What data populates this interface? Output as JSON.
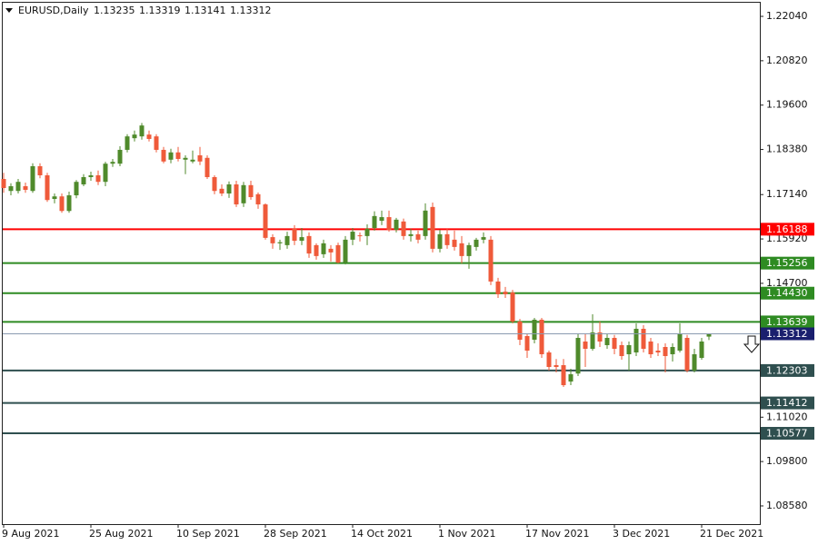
{
  "chart_data": {
    "type": "candlestick",
    "title": "EURUSD,Daily",
    "categories": [
      "9 Aug 2021",
      null,
      null,
      null,
      null,
      null,
      null,
      null,
      null,
      null,
      null,
      null,
      "25 Aug 2021",
      null,
      null,
      null,
      null,
      null,
      null,
      null,
      null,
      null,
      null,
      null,
      "10 Sep 2021",
      null,
      null,
      null,
      null,
      null,
      null,
      null,
      null,
      null,
      null,
      null,
      "28 Sep 2021",
      null,
      null,
      null,
      null,
      null,
      null,
      null,
      null,
      null,
      null,
      null,
      "14 Oct 2021",
      null,
      null,
      null,
      null,
      null,
      null,
      null,
      null,
      null,
      null,
      null,
      "1 Nov 2021",
      null,
      null,
      null,
      null,
      null,
      null,
      null,
      null,
      null,
      null,
      null,
      "17 Nov 2021",
      null,
      null,
      null,
      null,
      null,
      null,
      null,
      null,
      null,
      null,
      null,
      "3 Dec 2021",
      null,
      null,
      null,
      null,
      null,
      null,
      null,
      null,
      null,
      null,
      null,
      "21 Dec 2021",
      null
    ],
    "open": [
      1.1757,
      1.1724,
      1.1724,
      1.1737,
      1.1724,
      1.1792,
      1.1767,
      1.1702,
      1.1709,
      1.1669,
      1.1712,
      1.1742,
      1.1762,
      1.1767,
      1.1749,
      1.1799,
      1.1799,
      1.1837,
      1.1869,
      1.1874,
      1.1879,
      1.1874,
      1.1837,
      1.181,
      1.183,
      1.181,
      1.1805,
      1.1822,
      1.1815,
      1.1762,
      1.173,
      1.1717,
      1.1742,
      1.169,
      1.174,
      1.1715,
      1.1687,
      1.1597,
      1.158,
      1.1575,
      1.162,
      1.1587,
      1.16,
      1.1575,
      1.155,
      1.1565,
      1.1575,
      1.1527,
      1.159,
      1.1602,
      1.16,
      1.1622,
      1.1642,
      1.1652,
      1.1617,
      1.164,
      1.16,
      1.1605,
      1.16,
      1.168,
      1.1565,
      1.1605,
      1.159,
      1.158,
      1.1545,
      1.157,
      1.159,
      1.159,
      1.1475,
      1.1447,
      1.1445,
      1.1365,
      1.1325,
      1.1315,
      1.137,
      1.128,
      1.1245,
      1.1245,
      1.12,
      1.1222,
      1.131,
      1.129,
      1.1335,
      1.13,
      1.132,
      1.13,
      1.1275,
      1.128,
      1.1345,
      1.131,
      1.1285,
      1.1295,
      1.1275,
      1.1285,
      1.132,
      1.123,
      1.1265,
      1.13235
    ],
    "high": [
      1.1774,
      1.1745,
      1.1757,
      1.1747,
      1.18,
      1.18,
      1.1774,
      1.1717,
      1.1717,
      1.1722,
      1.1754,
      1.177,
      1.1777,
      1.178,
      1.1804,
      1.1812,
      1.1847,
      1.188,
      1.189,
      1.1911,
      1.189,
      1.188,
      1.1845,
      1.184,
      1.1845,
      1.1822,
      1.1835,
      1.1845,
      1.1822,
      1.1767,
      1.1742,
      1.175,
      1.1752,
      1.1749,
      1.1752,
      1.172,
      1.169,
      1.1605,
      1.159,
      1.1612,
      1.163,
      1.1622,
      1.161,
      1.158,
      1.159,
      1.1575,
      1.1582,
      1.16,
      1.1622,
      1.161,
      1.1632,
      1.1668,
      1.167,
      1.167,
      1.165,
      1.1648,
      1.162,
      1.1615,
      1.169,
      1.1692,
      1.1617,
      1.162,
      1.1615,
      1.16,
      1.1582,
      1.1595,
      1.161,
      1.16,
      1.1485,
      1.146,
      1.1452,
      1.1372,
      1.133,
      1.1375,
      1.1375,
      1.1285,
      1.1262,
      1.1262,
      1.1235,
      1.133,
      1.133,
      1.1385,
      1.1365,
      1.133,
      1.1328,
      1.131,
      1.131,
      1.136,
      1.1355,
      1.132,
      1.1305,
      1.1305,
      1.1305,
      1.136,
      1.1328,
      1.129,
      1.132,
      1.13319
    ],
    "low": [
      1.1719,
      1.1712,
      1.1717,
      1.1719,
      1.1719,
      1.1759,
      1.1694,
      1.169,
      1.1664,
      1.1664,
      1.1704,
      1.1737,
      1.1752,
      1.174,
      1.1737,
      1.179,
      1.1792,
      1.183,
      1.186,
      1.1865,
      1.186,
      1.183,
      1.18,
      1.18,
      1.1805,
      1.177,
      1.18,
      1.1795,
      1.1757,
      1.1715,
      1.171,
      1.1705,
      1.168,
      1.168,
      1.17,
      1.1675,
      1.159,
      1.1565,
      1.1562,
      1.1565,
      1.1575,
      1.1575,
      1.154,
      1.1535,
      1.154,
      1.153,
      1.1525,
      1.1522,
      1.1575,
      1.1585,
      1.1575,
      1.1615,
      1.163,
      1.1612,
      1.161,
      1.159,
      1.1585,
      1.158,
      1.159,
      1.1555,
      1.1555,
      1.1565,
      1.156,
      1.1525,
      1.151,
      1.156,
      1.158,
      1.1465,
      1.143,
      1.143,
      1.136,
      1.13,
      1.1265,
      1.1305,
      1.1265,
      1.123,
      1.1225,
      1.1185,
      1.119,
      1.1215,
      1.124,
      1.1285,
      1.1295,
      1.129,
      1.1275,
      1.126,
      1.123,
      1.127,
      1.128,
      1.1265,
      1.127,
      1.1225,
      1.1255,
      1.128,
      1.1225,
      1.1225,
      1.126,
      1.13141
    ],
    "close": [
      1.1732,
      1.1737,
      1.1749,
      1.1727,
      1.1792,
      1.1767,
      1.1699,
      1.1709,
      1.1669,
      1.1712,
      1.1749,
      1.1762,
      1.1767,
      1.1749,
      1.1799,
      1.1804,
      1.1837,
      1.1874,
      1.1879,
      1.1904,
      1.1867,
      1.1837,
      1.1805,
      1.183,
      1.1812,
      1.1815,
      1.181,
      1.1805,
      1.1762,
      1.1724,
      1.1717,
      1.1742,
      1.1687,
      1.174,
      1.1707,
      1.1687,
      1.1595,
      1.158,
      1.1583,
      1.16,
      1.1587,
      1.1597,
      1.1552,
      1.1545,
      1.158,
      1.1555,
      1.1527,
      1.159,
      1.1612,
      1.16,
      1.162,
      1.1655,
      1.1652,
      1.1617,
      1.1645,
      1.16,
      1.1605,
      1.159,
      1.167,
      1.1565,
      1.1605,
      1.1575,
      1.157,
      1.1545,
      1.1575,
      1.159,
      1.1597,
      1.1475,
      1.144,
      1.144,
      1.1365,
      1.1315,
      1.1285,
      1.137,
      1.1275,
      1.124,
      1.124,
      1.119,
      1.122,
      1.132,
      1.129,
      1.1335,
      1.131,
      1.132,
      1.129,
      1.127,
      1.13,
      1.1345,
      1.129,
      1.1275,
      1.128,
      1.127,
      1.1295,
      1.133,
      1.123,
      1.1275,
      1.131,
      1.13312
    ],
    "up_color": "#4f8a2b",
    "down_color": "#ef5a3a",
    "ylim": [
      1.0808,
      1.2249
    ],
    "yticks": [
      {
        "value": 1.2204,
        "label": "1.22040"
      },
      {
        "value": 1.2082,
        "label": "1.20820"
      },
      {
        "value": 1.196,
        "label": "1.19600"
      },
      {
        "value": 1.1838,
        "label": "1.18380"
      },
      {
        "value": 1.1714,
        "label": "1.17140"
      },
      {
        "value": 1.1592,
        "label": "1.15920"
      },
      {
        "value": 1.147,
        "label": "1.14700"
      },
      {
        "value": 1.1102,
        "label": "1.11020"
      },
      {
        "value": 1.098,
        "label": "1.09800"
      },
      {
        "value": 1.0858,
        "label": "1.08580"
      }
    ],
    "levels": [
      {
        "value": 1.16188,
        "color": "#ff0000"
      },
      {
        "value": 1.15256,
        "color": "#2e8b22"
      },
      {
        "value": 1.1443,
        "label": "1.14430",
        "color": "#2e8b22"
      },
      {
        "value": 1.13639,
        "color": "#2e8b22"
      },
      {
        "value": 1.12303,
        "color": "#2f4f4f"
      },
      {
        "value": 1.11412,
        "color": "#2f4f4f"
      },
      {
        "value": 1.10577,
        "color": "#2f4f4f"
      }
    ],
    "current_price_color": "#1a1f6e"
  }
}
